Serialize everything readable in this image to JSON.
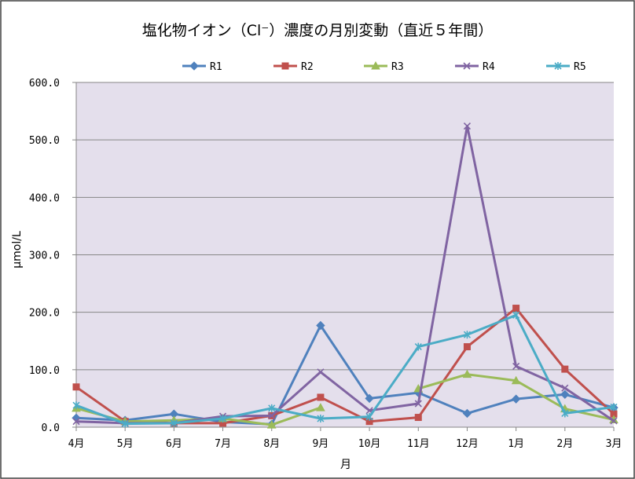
{
  "chart_data": {
    "type": "line",
    "title": "塩化物イオン（Cl⁻）濃度の月別変動（直近５年間）",
    "xlabel": "月",
    "ylabel": "μmol/L",
    "categories": [
      "4月",
      "5月",
      "6月",
      "7月",
      "8月",
      "9月",
      "10月",
      "11月",
      "12月",
      "1月",
      "2月",
      "3月"
    ],
    "ylim": [
      0,
      600
    ],
    "yticks": [
      0,
      100,
      200,
      300,
      400,
      500,
      600
    ],
    "ytick_labels": [
      "0.0",
      "100.0",
      "200.0",
      "300.0",
      "400.0",
      "500.0",
      "600.0"
    ],
    "grid": true,
    "legend": "top",
    "plot_background": "#E4DFEC",
    "series": [
      {
        "name": "R1",
        "color": "#4F81BD",
        "marker": "diamond",
        "values": [
          16,
          12,
          23,
          9,
          5,
          177,
          50,
          60,
          24,
          49,
          57,
          34
        ]
      },
      {
        "name": "R2",
        "color": "#C0504D",
        "marker": "square",
        "values": [
          70,
          10,
          7,
          7,
          20,
          52,
          10,
          17,
          140,
          207,
          101,
          23
        ]
      },
      {
        "name": "R3",
        "color": "#9BBB59",
        "marker": "triangle",
        "values": [
          33,
          10,
          12,
          15,
          4,
          34,
          null,
          67,
          92,
          81,
          32,
          13
        ]
      },
      {
        "name": "R4",
        "color": "#8064A2",
        "marker": "x",
        "values": [
          10,
          7,
          7,
          19,
          20,
          96,
          29,
          41,
          524,
          106,
          68,
          11
        ]
      },
      {
        "name": "R5",
        "color": "#4BACC6",
        "marker": "star",
        "values": [
          38,
          6,
          7,
          15,
          33,
          15,
          18,
          140,
          161,
          195,
          24,
          35
        ]
      }
    ]
  }
}
